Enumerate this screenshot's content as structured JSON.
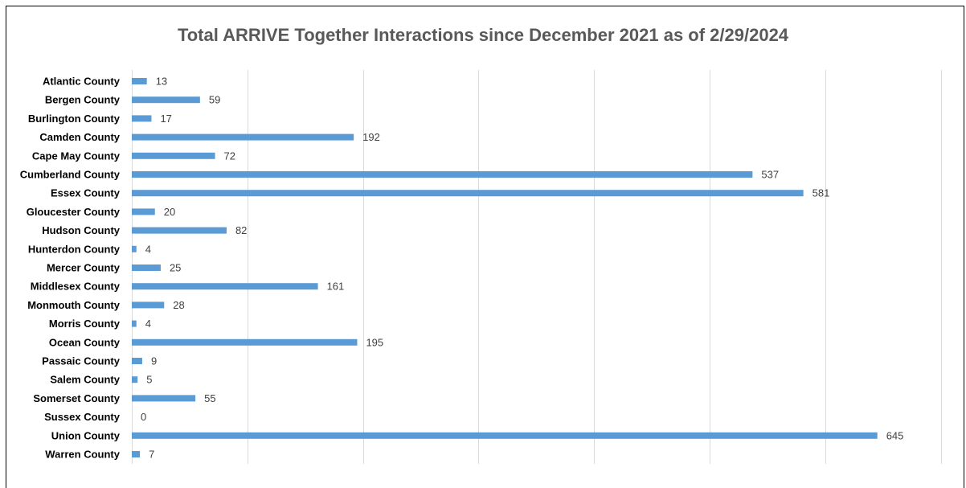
{
  "chart_data": {
    "type": "bar",
    "orientation": "horizontal",
    "title": "Total ARRIVE Together Interactions since December 2021 as of 2/29/2024",
    "categories": [
      "Atlantic County",
      "Bergen County",
      "Burlington County",
      "Camden County",
      "Cape May County",
      "Cumberland County",
      "Essex County",
      "Gloucester County",
      "Hudson County",
      "Hunterdon County",
      "Mercer County",
      "Middlesex County",
      "Monmouth County",
      "Morris County",
      "Ocean County",
      "Passaic County",
      "Salem County",
      "Somerset County",
      "Sussex County",
      "Union County",
      "Warren County"
    ],
    "values": [
      13,
      59,
      17,
      192,
      72,
      537,
      581,
      20,
      82,
      4,
      25,
      161,
      28,
      4,
      195,
      9,
      5,
      55,
      0,
      645,
      7
    ],
    "xlim": [
      0,
      700
    ],
    "grid": true,
    "bar_color": "#5b9bd5",
    "data_labels": true
  }
}
